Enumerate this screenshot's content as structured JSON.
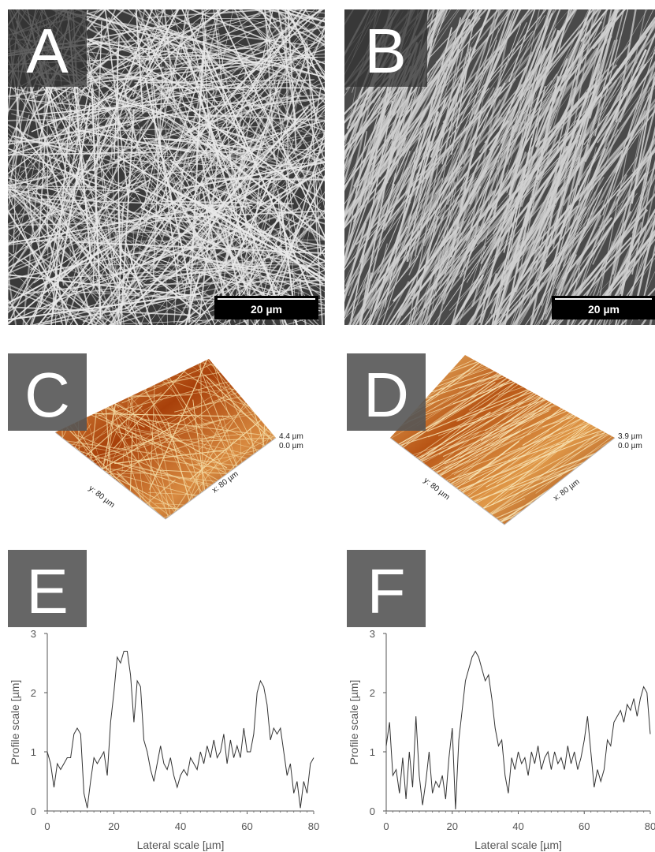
{
  "panels": {
    "A": {
      "label": "A",
      "scale_bar": "20 µm"
    },
    "B": {
      "label": "B",
      "scale_bar": "20 µm"
    },
    "C": {
      "label": "C",
      "z_max": "4.4 µm",
      "z_min": "0.0 µm",
      "y_axis": "y: 80 µm",
      "x_axis": "x: 80 µm"
    },
    "D": {
      "label": "D",
      "z_max": "3.9 µm",
      "z_min": "0.0 µm",
      "y_axis": "y: 80 µm",
      "x_axis": "x: 80 µm"
    },
    "E": {
      "label": "E"
    },
    "F": {
      "label": "F"
    }
  },
  "chart_data": [
    {
      "type": "line",
      "x_label": "Lateral scale [µm]",
      "y_label": "Profile scale [µm]",
      "xlim": [
        0,
        80
      ],
      "ylim": [
        0,
        3
      ],
      "xticks": [
        0,
        20,
        40,
        60,
        80
      ],
      "yticks": [
        0,
        1,
        2,
        3
      ],
      "x": [
        0,
        1,
        2,
        3,
        4,
        5,
        6,
        7,
        8,
        9,
        10,
        11,
        12,
        13,
        14,
        15,
        16,
        17,
        18,
        19,
        20,
        21,
        22,
        23,
        24,
        25,
        26,
        27,
        28,
        29,
        30,
        31,
        32,
        33,
        34,
        35,
        36,
        37,
        38,
        39,
        40,
        41,
        42,
        43,
        44,
        45,
        46,
        47,
        48,
        49,
        50,
        51,
        52,
        53,
        54,
        55,
        56,
        57,
        58,
        59,
        60,
        61,
        62,
        63,
        64,
        65,
        66,
        67,
        68,
        69,
        70,
        71,
        72,
        73,
        74,
        75,
        76,
        77,
        78,
        79,
        80
      ],
      "series": [
        {
          "color": "#333333",
          "values": [
            1.0,
            0.8,
            0.4,
            0.8,
            0.7,
            0.8,
            0.9,
            0.9,
            1.3,
            1.4,
            1.3,
            0.3,
            0.05,
            0.5,
            0.9,
            0.8,
            0.9,
            1.0,
            0.6,
            1.5,
            2.0,
            2.6,
            2.5,
            2.7,
            2.7,
            2.3,
            1.5,
            2.2,
            2.1,
            1.2,
            1.0,
            0.7,
            0.5,
            0.8,
            1.1,
            0.8,
            0.7,
            0.9,
            0.6,
            0.4,
            0.6,
            0.7,
            0.6,
            0.9,
            0.8,
            0.7,
            1.0,
            0.8,
            1.1,
            0.9,
            1.2,
            0.9,
            1.0,
            1.3,
            0.8,
            1.2,
            0.9,
            1.1,
            0.9,
            1.4,
            1.0,
            1.0,
            1.3,
            2.0,
            2.2,
            2.1,
            1.8,
            1.2,
            1.4,
            1.3,
            1.4,
            1.0,
            0.6,
            0.8,
            0.3,
            0.5,
            0.05,
            0.5,
            0.3,
            0.8,
            0.9
          ]
        }
      ]
    },
    {
      "type": "line",
      "x_label": "Lateral scale [µm]",
      "y_label": "Profile scale [µm]",
      "xlim": [
        0,
        80
      ],
      "ylim": [
        0,
        3
      ],
      "xticks": [
        0,
        20,
        40,
        60,
        80
      ],
      "yticks": [
        0,
        1,
        2,
        3
      ],
      "x": [
        0,
        1,
        2,
        3,
        4,
        5,
        6,
        7,
        8,
        9,
        10,
        11,
        12,
        13,
        14,
        15,
        16,
        17,
        18,
        19,
        20,
        21,
        22,
        23,
        24,
        25,
        26,
        27,
        28,
        29,
        30,
        31,
        32,
        33,
        34,
        35,
        36,
        37,
        38,
        39,
        40,
        41,
        42,
        43,
        44,
        45,
        46,
        47,
        48,
        49,
        50,
        51,
        52,
        53,
        54,
        55,
        56,
        57,
        58,
        59,
        60,
        61,
        62,
        63,
        64,
        65,
        66,
        67,
        68,
        69,
        70,
        71,
        72,
        73,
        74,
        75,
        76,
        77,
        78,
        79,
        80
      ],
      "series": [
        {
          "color": "#333333",
          "values": [
            1.1,
            1.5,
            0.6,
            0.7,
            0.3,
            0.9,
            0.2,
            1.0,
            0.4,
            1.6,
            0.6,
            0.1,
            0.5,
            1.0,
            0.3,
            0.5,
            0.4,
            0.6,
            0.2,
            0.9,
            1.4,
            0.03,
            1.2,
            1.7,
            2.2,
            2.4,
            2.6,
            2.7,
            2.6,
            2.4,
            2.2,
            2.3,
            1.9,
            1.4,
            1.1,
            1.2,
            0.6,
            0.3,
            0.9,
            0.7,
            1.0,
            0.8,
            0.9,
            0.6,
            1.0,
            0.8,
            1.1,
            0.7,
            0.9,
            1.0,
            0.7,
            1.0,
            0.8,
            0.9,
            0.7,
            1.1,
            0.8,
            1.0,
            0.7,
            0.9,
            1.2,
            1.6,
            1.0,
            0.4,
            0.7,
            0.5,
            0.7,
            1.2,
            1.1,
            1.5,
            1.6,
            1.7,
            1.5,
            1.8,
            1.7,
            1.9,
            1.6,
            1.9,
            2.1,
            2.0,
            1.3
          ]
        }
      ]
    }
  ]
}
